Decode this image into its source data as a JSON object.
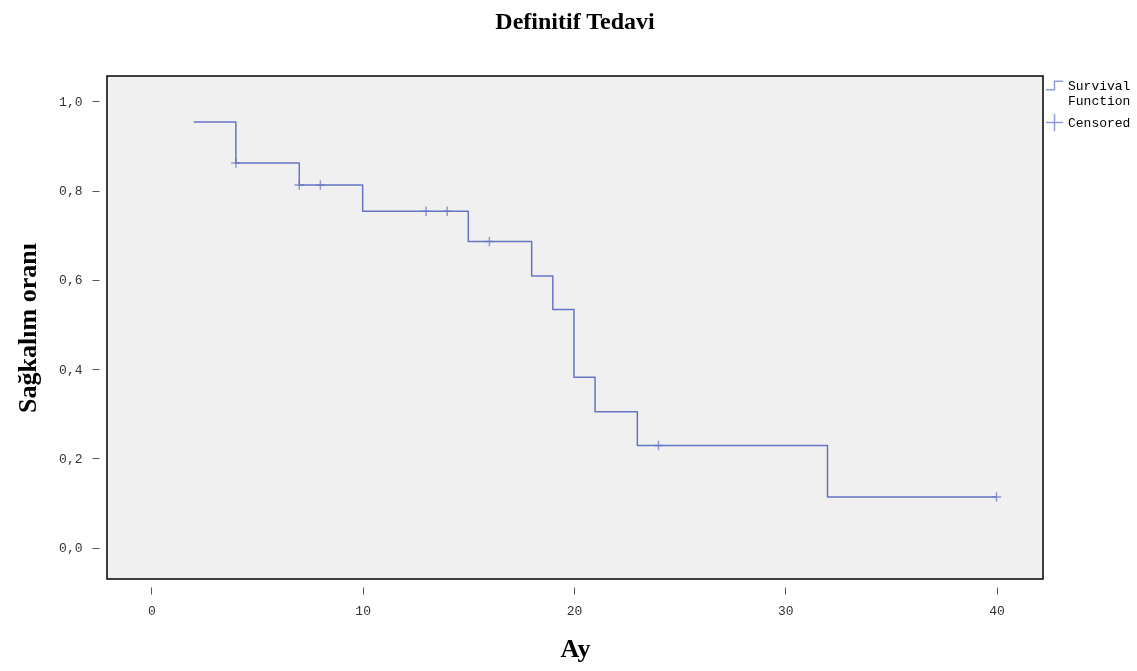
{
  "chart_data": {
    "type": "step",
    "title": "Definitif Tedavi",
    "xlabel": "Ay",
    "ylabel": "Sağkalım oranı",
    "xlim": [
      -2.1,
      42.2
    ],
    "xticks": [
      0,
      10,
      20,
      30,
      40
    ],
    "ylim": [
      -0.07,
      1.057
    ],
    "yticks": [
      {
        "value": 0,
        "label": "0,0"
      },
      {
        "value": 0.2,
        "label": "0,2"
      },
      {
        "value": 0.4,
        "label": "0,4"
      },
      {
        "value": 0.6,
        "label": "0,6"
      },
      {
        "value": 0.8,
        "label": "0,8"
      },
      {
        "value": 1,
        "label": "1,0"
      }
    ],
    "grid": false,
    "legend": "top right",
    "series": [
      {
        "name": "Survival Function",
        "color": "#6674c4",
        "x": [
          2,
          4,
          7,
          10,
          15,
          18,
          19,
          20,
          21,
          23,
          32,
          40
        ],
        "values": [
          0.954,
          0.862,
          0.813,
          0.754,
          0.686,
          0.609,
          0.534,
          0.382,
          0.305,
          0.229,
          0.114,
          0.114
        ]
      },
      {
        "name": "Censored",
        "type": "scatter",
        "marker": "cross",
        "color": "#6674c4",
        "x": [
          4,
          7,
          8,
          13,
          14,
          16,
          24,
          40
        ],
        "values": [
          0.862,
          0.813,
          0.813,
          0.754,
          0.754,
          0.686,
          0.229,
          0.114
        ]
      }
    ]
  }
}
